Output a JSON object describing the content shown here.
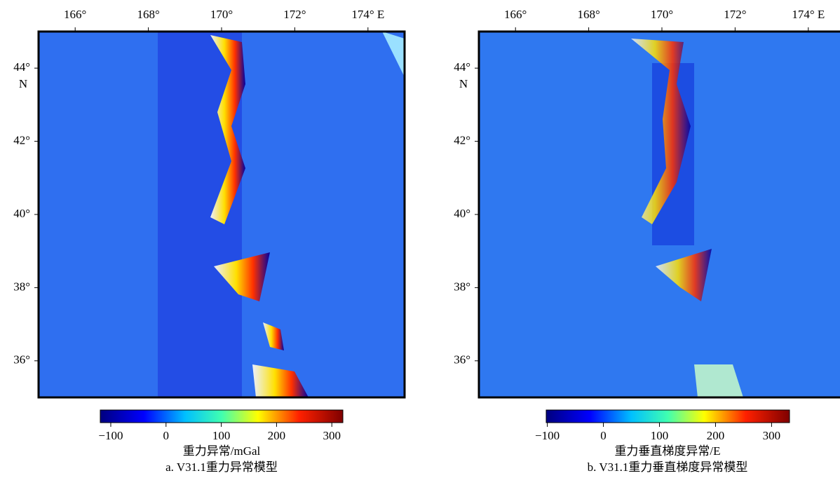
{
  "panels": [
    {
      "lonlim": [
        165,
        175
      ],
      "latlim": [
        35,
        45
      ],
      "lon_ticks": [
        {
          "value": 166,
          "label": "166°"
        },
        {
          "value": 168,
          "label": "168°"
        },
        {
          "value": 170,
          "label": "170°"
        },
        {
          "value": 172,
          "label": "172°"
        },
        {
          "value": 174,
          "label": "174° E"
        }
      ],
      "lat_ticks": [
        {
          "value": 44,
          "label": "44°"
        },
        {
          "value": 42,
          "label": "42°"
        },
        {
          "value": 40,
          "label": "40°"
        },
        {
          "value": 38,
          "label": "38°"
        },
        {
          "value": 36,
          "label": "36°"
        }
      ],
      "lat_hemisphere": "N",
      "colorbar": {
        "range": [
          -119,
          320
        ],
        "ticks": [
          {
            "value": -100,
            "label": "−100"
          },
          0,
          100,
          200,
          300
        ],
        "label": "重力异常/mGal"
      },
      "caption": "a. V31.1重力异常模型"
    },
    {
      "lonlim": [
        165,
        175
      ],
      "latlim": [
        35,
        45
      ],
      "lon_ticks": [
        {
          "value": 166,
          "label": "166°"
        },
        {
          "value": 168,
          "label": "168°"
        },
        {
          "value": 170,
          "label": "170°"
        },
        {
          "value": 172,
          "label": "172°"
        },
        {
          "value": 174,
          "label": "174° E"
        }
      ],
      "lat_ticks": [
        {
          "value": 44,
          "label": "44°"
        },
        {
          "value": 42,
          "label": "42°"
        },
        {
          "value": 40,
          "label": "40°"
        },
        {
          "value": 38,
          "label": "38°"
        },
        {
          "value": 36,
          "label": "36°"
        }
      ],
      "lat_hemisphere": "N",
      "colorbar": {
        "range": [
          -102,
          332
        ],
        "ticks": [
          {
            "value": -100,
            "label": "−100"
          },
          0,
          100,
          200,
          300
        ],
        "label": "重力垂直梯度异常/E"
      },
      "caption": "b. V31.1重力垂直梯度异常模型"
    }
  ]
}
